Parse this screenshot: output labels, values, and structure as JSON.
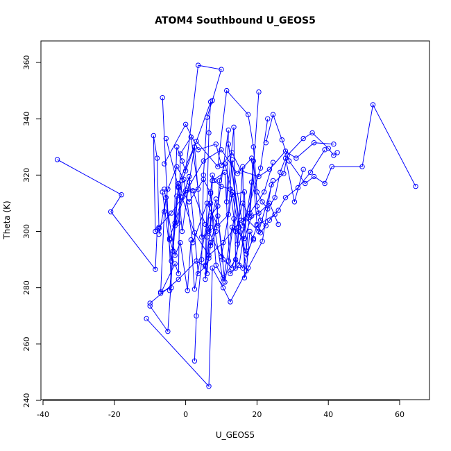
{
  "chart_data": {
    "type": "line",
    "title": "ATOM4 Southbound U_GEOS5",
    "xlabel": "U_GEOS5",
    "ylabel": "Theta (K)",
    "xlim": [
      -40,
      65
    ],
    "ylim": [
      240,
      360
    ],
    "xticks": [
      -40,
      -20,
      0,
      20,
      40,
      60
    ],
    "yticks": [
      240,
      260,
      280,
      300,
      320,
      340,
      360
    ],
    "grid": false,
    "legend": "none",
    "color": "#0000ff",
    "marker": "open-circle",
    "series": [
      {
        "x": [
          -36.0,
          -18.0,
          -21.0,
          -8.5,
          -8.0,
          -7.5,
          -8.0,
          -9.0,
          -8.5
        ],
        "y": [
          325.5,
          313.0,
          307.0,
          286.5,
          300.5,
          301.0,
          326.0,
          334.0,
          300.0
        ]
      },
      {
        "x": [
          -6.5,
          -4.0,
          -7.0,
          -6.0,
          -5.5,
          -4.5,
          -3.5,
          -2.5,
          -1.0,
          0.0,
          3.5,
          10.0,
          7.5,
          6.0,
          5.0,
          4.5,
          3.0,
          2.5
        ],
        "y": [
          347.5,
          280.0,
          278.5,
          307.0,
          312.0,
          297.0,
          293.0,
          330.0,
          325.0,
          321.5,
          359.0,
          357.5,
          346.5,
          340.5,
          320.0,
          290.0,
          270.0,
          254.0
        ]
      },
      {
        "x": [
          -7.0,
          -3.0,
          -2.0,
          -1.5,
          1.5,
          3.5,
          0.0,
          -3.0,
          -2.0,
          -1.0,
          7.0,
          6.5,
          5.5,
          6.0,
          7.0,
          9.0,
          12.0,
          11.5,
          13.5,
          14.0,
          15.0,
          12.0,
          17.0,
          18.0,
          19.0
        ],
        "y": [
          278.0,
          288.5,
          285.0,
          327.5,
          333.5,
          315.0,
          314.5,
          302.0,
          303.0,
          318.0,
          346.0,
          335.0,
          288.0,
          285.0,
          305.5,
          309.0,
          336.0,
          310.5,
          337.0,
          287.0,
          301.5,
          331.0,
          286.0,
          300.0,
          297.0
        ]
      },
      {
        "x": [
          -11.0,
          6.5,
          7.5,
          10.5,
          12.5,
          21.5,
          24.0,
          27.5,
          28.5,
          33.0,
          35.5,
          40.0,
          41.5,
          42.5
        ],
        "y": [
          269.0,
          245.0,
          287.0,
          280.0,
          275.0,
          296.5,
          316.5,
          320.5,
          327.0,
          333.0,
          335.0,
          329.5,
          327.0,
          328.0
        ]
      },
      {
        "x": [
          -10.0,
          -5.0,
          -3.0,
          -2.0,
          3.0,
          9.0,
          11.5,
          17.5,
          19.0,
          20.0,
          21.5,
          23.0,
          25.0,
          26.5,
          28.0,
          30.5,
          33.0
        ],
        "y": [
          273.5,
          264.5,
          303.0,
          317.0,
          332.0,
          323.0,
          350.0,
          341.5,
          330.0,
          314.0,
          310.5,
          308.0,
          312.0,
          321.0,
          326.0,
          310.5,
          322.0
        ]
      },
      {
        "x": [
          20.5,
          18.0,
          16.0,
          14.0,
          12.5,
          10.0,
          8.0,
          7.5,
          7.0,
          6.0,
          5.5,
          7.0,
          8.5,
          9.5,
          11.0,
          13.0,
          15.0,
          17.0,
          19.0
        ],
        "y": [
          349.5,
          305.0,
          310.0,
          300.0,
          315.0,
          316.0,
          318.0,
          320.0,
          314.0,
          298.0,
          283.0,
          295.0,
          300.0,
          318.0,
          324.0,
          314.0,
          300.0,
          292.0,
          297.5
        ]
      },
      {
        "x": [
          -5.5,
          -2.0,
          -1.0,
          1.0,
          2.5,
          4.5,
          6.5,
          8.5,
          11.0,
          12.0,
          13.5,
          14.5,
          16.0,
          16.5,
          17.5
        ],
        "y": [
          333.0,
          315.5,
          300.0,
          317.5,
          330.0,
          298.0,
          300.0,
          311.5,
          282.0,
          289.5,
          304.5,
          295.5,
          323.0,
          283.5,
          287.0
        ]
      },
      {
        "x": [
          22.5,
          24.5,
          27.0,
          29.0,
          33.5,
          36.0,
          39.0,
          41.0,
          49.5,
          52.5,
          64.5
        ],
        "y": [
          331.5,
          341.5,
          332.5,
          325.0,
          317.0,
          319.5,
          317.0,
          323.0,
          323.0,
          345.0,
          316.0
        ]
      },
      {
        "x": [
          0.5,
          5.0,
          10.0,
          14.5,
          18.5,
          20.0,
          21.0,
          23.5,
          26.0,
          28.0,
          31.5,
          35.0,
          39.0
        ],
        "y": [
          315.0,
          325.0,
          329.0,
          320.5,
          326.0,
          302.5,
          299.5,
          304.0,
          307.5,
          312.0,
          315.5,
          321.0,
          329.0
        ]
      },
      {
        "x": [
          -6.5,
          -4.0,
          -2.5,
          2.0,
          5.5,
          10.0,
          13.0,
          16.5,
          17.0,
          19.0,
          20.0,
          21.0,
          22.5
        ],
        "y": [
          314.0,
          289.5,
          312.5,
          314.5,
          302.5,
          291.0,
          313.0,
          314.0,
          293.0,
          325.0,
          309.0,
          304.0,
          302.0
        ]
      },
      {
        "x": [
          -6.0,
          -3.0,
          -1.5,
          0.5,
          1.5,
          2.5,
          7.0,
          10.5,
          13.0,
          16.5,
          18.5,
          20.5,
          23.5,
          26.0
        ],
        "y": [
          315.0,
          291.5,
          296.0,
          279.0,
          297.0,
          279.5,
          310.0,
          282.0,
          301.5,
          297.5,
          305.5,
          306.5,
          310.0,
          302.5
        ]
      },
      {
        "x": [
          -4.5,
          1.0,
          3.5,
          5.5,
          7.0,
          7.5,
          11.0,
          12.5,
          15.0,
          18.5
        ],
        "y": [
          297.5,
          319.5,
          285.0,
          287.5,
          301.5,
          318.0,
          321.0,
          285.0,
          288.0,
          317.5
        ]
      },
      {
        "x": [
          -6.0,
          0.0,
          3.5,
          8.5,
          10.0,
          13.0,
          15.5,
          20.5,
          23.5,
          28.0,
          31.0,
          36.0,
          41.5
        ],
        "y": [
          324.0,
          338.0,
          329.0,
          331.0,
          323.5,
          328.0,
          321.5,
          319.5,
          322.0,
          328.5,
          326.0,
          331.5,
          331.0
        ]
      },
      {
        "x": [
          -4.5,
          -2.0,
          1.0,
          5.0,
          7.0,
          8.5,
          10.5,
          14.0,
          16.0,
          20.0,
          25.0
        ],
        "y": [
          279.0,
          316.0,
          310.5,
          318.5,
          313.5,
          288.0,
          283.5,
          290.0,
          287.0,
          302.0,
          306.0
        ]
      },
      {
        "x": [
          -10.0,
          -2.0,
          3.0,
          5.5,
          6.5,
          7.0,
          9.0,
          10.5,
          13.0,
          17.0,
          20.5,
          24.5
        ],
        "y": [
          274.5,
          283.0,
          289.5,
          287.5,
          290.5,
          296.0,
          305.5,
          290.0,
          287.0,
          304.5,
          300.0,
          318.0
        ]
      },
      {
        "x": [
          -7.5,
          -5.0,
          -2.5,
          -0.5,
          2.0,
          6.0,
          9.0,
          12.0,
          13.0,
          16.0,
          21.0,
          23.0
        ],
        "y": [
          299.0,
          315.0,
          323.0,
          318.5,
          296.0,
          310.0,
          302.0,
          306.0,
          325.5,
          302.0,
          322.5,
          340.0
        ]
      },
      {
        "x": [
          -7.5,
          -4.0,
          -1.0,
          2.5,
          6.5,
          10.5,
          15.5,
          18.0,
          22.0,
          24.5
        ],
        "y": [
          301.5,
          306.5,
          312.0,
          299.5,
          291.5,
          296.0,
          304.0,
          306.5,
          314.0,
          324.5
        ]
      }
    ]
  }
}
